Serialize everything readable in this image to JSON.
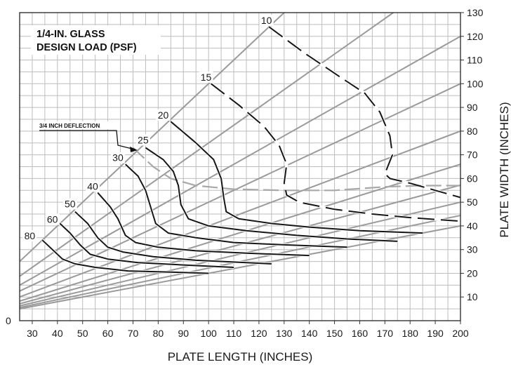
{
  "chart_data": {
    "type": "line",
    "title_lines": [
      "1/4-IN. GLASS",
      "DESIGN LOAD (PSF)"
    ],
    "xlabel": "PLATE LENGTH (INCHES)",
    "ylabel": "PLATE WIDTH (INCHES)",
    "xlim": [
      25,
      200
    ],
    "ylim": [
      0,
      130
    ],
    "x_ticks": [
      30,
      40,
      50,
      60,
      70,
      80,
      90,
      100,
      110,
      120,
      130,
      140,
      150,
      160,
      170,
      180,
      190,
      200
    ],
    "y_ticks": [
      10,
      20,
      30,
      40,
      50,
      60,
      70,
      80,
      90,
      100,
      110,
      120,
      130
    ],
    "origin_label": "0",
    "grid": true,
    "aspect_ratio_lines": [
      1.0,
      0.75,
      0.6,
      0.5,
      0.4,
      0.33,
      0.286,
      0.25,
      0.222,
      0.2
    ],
    "series": [
      {
        "name": "10",
        "dashed": true,
        "label_at": [
          123,
          125
        ],
        "points": [
          [
            124,
            124
          ],
          [
            138,
            113
          ],
          [
            152,
            103
          ],
          [
            162,
            96
          ],
          [
            168,
            88
          ],
          [
            172,
            78
          ],
          [
            173,
            70
          ],
          [
            170,
            62
          ],
          [
            172,
            60
          ],
          [
            180,
            58
          ],
          [
            190,
            55
          ],
          [
            200,
            52
          ]
        ]
      },
      {
        "name": "15",
        "dashed": true,
        "label_at": [
          99,
          101
        ],
        "points": [
          [
            101,
            100
          ],
          [
            112,
            91
          ],
          [
            122,
            82
          ],
          [
            128,
            74
          ],
          [
            131,
            66
          ],
          [
            130,
            58
          ],
          [
            131,
            53
          ],
          [
            136,
            50
          ],
          [
            150,
            47
          ],
          [
            165,
            45
          ],
          [
            180,
            43.5
          ],
          [
            200,
            42
          ]
        ]
      },
      {
        "name": "20",
        "dashed": false,
        "label_at": [
          82,
          85
        ],
        "points": [
          [
            85,
            84
          ],
          [
            95,
            75
          ],
          [
            102,
            68
          ],
          [
            105,
            60
          ],
          [
            106,
            52
          ],
          [
            107,
            46
          ],
          [
            112,
            43
          ],
          [
            125,
            41
          ],
          [
            140,
            39.5
          ],
          [
            160,
            38
          ],
          [
            185,
            37
          ]
        ]
      },
      {
        "name": "25",
        "dashed": false,
        "label_at": [
          74,
          74.5
        ],
        "points": [
          [
            75,
            73
          ],
          [
            82,
            68
          ],
          [
            86,
            63
          ],
          [
            88,
            57
          ],
          [
            89,
            49
          ],
          [
            92,
            43
          ],
          [
            100,
            40
          ],
          [
            115,
            38
          ],
          [
            135,
            36
          ],
          [
            155,
            34.5
          ],
          [
            175,
            33.5
          ]
        ]
      },
      {
        "name": "30",
        "dashed": false,
        "label_at": [
          64,
          67
        ],
        "points": [
          [
            67,
            66
          ],
          [
            72,
            61
          ],
          [
            75,
            55
          ],
          [
            77,
            48
          ],
          [
            79,
            41
          ],
          [
            84,
            37
          ],
          [
            95,
            35
          ],
          [
            110,
            33
          ],
          [
            130,
            32
          ],
          [
            155,
            31
          ]
        ]
      },
      {
        "name": "40",
        "dashed": false,
        "label_at": [
          54,
          55
        ],
        "points": [
          [
            56,
            54
          ],
          [
            61,
            48
          ],
          [
            64,
            43
          ],
          [
            67,
            36
          ],
          [
            71,
            33
          ],
          [
            80,
            31
          ],
          [
            95,
            29.5
          ],
          [
            115,
            28.5
          ],
          [
            140,
            27.5
          ]
        ]
      },
      {
        "name": "50",
        "dashed": false,
        "label_at": [
          45,
          47.5
        ],
        "points": [
          [
            47,
            46
          ],
          [
            52,
            41
          ],
          [
            56,
            35
          ],
          [
            60,
            31
          ],
          [
            66,
            29
          ],
          [
            78,
            27
          ],
          [
            95,
            25.5
          ],
          [
            115,
            24.5
          ],
          [
            125,
            24
          ]
        ]
      },
      {
        "name": "60",
        "dashed": false,
        "label_at": [
          38,
          41
        ],
        "points": [
          [
            41,
            41
          ],
          [
            45,
            37
          ],
          [
            49,
            32
          ],
          [
            53,
            28
          ],
          [
            60,
            26
          ],
          [
            72,
            24.5
          ],
          [
            90,
            23.5
          ],
          [
            110,
            22.5
          ]
        ]
      },
      {
        "name": "80",
        "dashed": false,
        "label_at": [
          29,
          34
        ],
        "points": [
          [
            34,
            34
          ],
          [
            38,
            30
          ],
          [
            42,
            26
          ],
          [
            47,
            24
          ],
          [
            55,
            22.5
          ],
          [
            68,
            21
          ],
          [
            85,
            20.5
          ],
          [
            100,
            20
          ]
        ]
      }
    ],
    "deflection_curve": {
      "label": "3/4 INCH DEFLECTION",
      "dashed": true,
      "points": [
        [
          70,
          73
        ],
        [
          78,
          65
        ],
        [
          85,
          60
        ],
        [
          95,
          57
        ],
        [
          110,
          55.5
        ],
        [
          130,
          55
        ],
        [
          150,
          55
        ],
        [
          170,
          56.5
        ],
        [
          185,
          57
        ],
        [
          200,
          57
        ]
      ]
    }
  }
}
